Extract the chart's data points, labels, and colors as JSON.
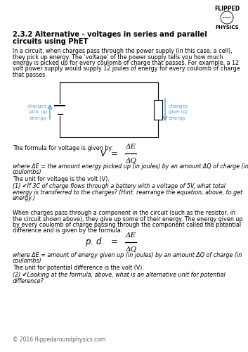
{
  "title_line1": "2.3.2 Alternative - voltages in series and parallel",
  "title_line2": "circuits using PhET",
  "bg_color": "#ffffff",
  "text_color": "#000000",
  "blue_color": "#5b9bd5",
  "para1_lines": [
    "In a circuit, when charges pass through the power supply (in this case, a cell),",
    "they pick up energy. The ‘voltage’ of the power supply tells you how much",
    "energy is picked up for every coulomb of charge that passes. For example, a 12",
    "volt power supply would supply 12 joules of energy for every coulomb of charge",
    "that passes."
  ],
  "circuit_label_left_lines": [
    "charges",
    "pick up",
    "energy"
  ],
  "circuit_label_right_lines": [
    "charges",
    "give up",
    "energy"
  ],
  "formula_intro": "The formula for voltage is given by:",
  "where_V_lines": [
    "where ΔE = the amount energy picked up (in joules) by an amount ΔQ of charge (in",
    "coulombs)"
  ],
  "unit_V": "The unit for voltage is the volt (V).",
  "q1_lines": [
    "(1) ✔If 3C of charge flows through a battery with a voltage of 5V, what total",
    "energy is transferred to the charges? (Hint: rearrange the equation, above, to get",
    "energy.)"
  ],
  "para2_lines": [
    "When charges pass through a component in the circuit (such as the resistor, in",
    "the circuit shown above), they give up some of their energy. The energy given up",
    "by every coulomb of charge passing through the component called the potential",
    "difference and is given by the formula:"
  ],
  "where_pd_lines": [
    "where ΔE = amount of energy given up (in joules) by an amount ΔQ of charge (in",
    "coulombs)"
  ],
  "unit_pd": "The unit for potential difference is the volt (V).",
  "q2_lines": [
    "(2) ✔Looking at the formula, above, what is an alternative unit for potential",
    "difference?"
  ],
  "footer": "© 2016 flippedaroundphysics.com",
  "delta_E": "ΔE",
  "delta_Q": "ΔQ"
}
